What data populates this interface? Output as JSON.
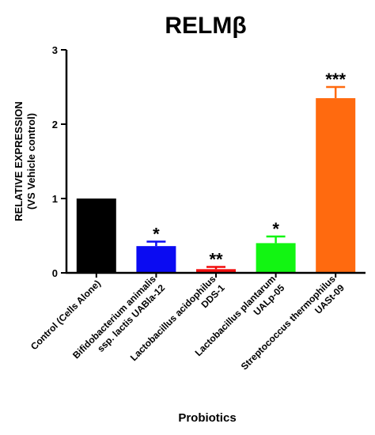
{
  "chart_data": {
    "type": "bar",
    "title": "RELMβ",
    "xlabel": "Probiotics",
    "ylabel": [
      "RELATIVE EXPRESSION",
      "(VS Vehicle control)"
    ],
    "ylim": [
      0,
      3
    ],
    "yticks": [
      "0",
      "1",
      "2",
      "3"
    ],
    "grid": false,
    "categories": [
      [
        "Control (Cells Alone)"
      ],
      [
        "Bifidobacterium animalis",
        "ssp. lactis UABla-12"
      ],
      [
        "Lactobacillus acidophilus",
        "DDS-1"
      ],
      [
        "Lactobacillus plantarum",
        "UALp-05"
      ],
      [
        "Streptococcus thermophilus",
        "UASt-09"
      ]
    ],
    "values": [
      1.0,
      0.36,
      0.05,
      0.4,
      2.35
    ],
    "error_upper": [
      1.0,
      0.42,
      0.08,
      0.49,
      2.5
    ],
    "colors": [
      "#000000",
      "#0b0bf2",
      "#f20d0d",
      "#12f512",
      "#ff6a0f"
    ],
    "significance": [
      "",
      "*",
      "**",
      "*",
      "***"
    ]
  }
}
